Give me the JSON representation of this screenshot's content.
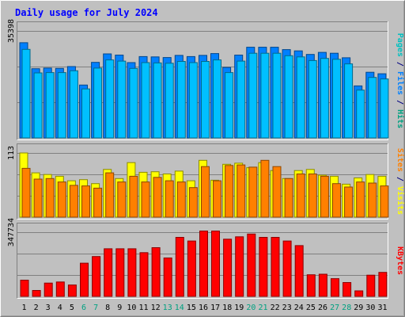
{
  "chart_data": {
    "type": "bar",
    "title": "Daily usage for July 2024",
    "categories": [
      "1",
      "2",
      "3",
      "4",
      "5",
      "6",
      "7",
      "8",
      "9",
      "10",
      "11",
      "12",
      "13",
      "14",
      "15",
      "16",
      "17",
      "18",
      "19",
      "20",
      "21",
      "22",
      "23",
      "24",
      "25",
      "26",
      "27",
      "28",
      "29",
      "30",
      "31"
    ],
    "weekend_days": [
      "6",
      "7",
      "13",
      "14",
      "20",
      "21",
      "27",
      "28"
    ],
    "panels": [
      {
        "id": "hits",
        "max_label": "35398",
        "ylim": [
          0,
          35398
        ],
        "axis_labels": [
          {
            "text": "Pages",
            "color": "#00c0c0"
          },
          {
            "text": " / ",
            "color": "#000080"
          },
          {
            "text": "Files",
            "color": "#0080ff"
          },
          {
            "text": " / ",
            "color": "#000080"
          },
          {
            "text": "Hits",
            "color": "#00a080"
          }
        ],
        "series": [
          {
            "name": "Hits",
            "color": "#0080ff",
            "values": [
              31500,
              22900,
              23100,
              23000,
              23600,
              17500,
              25000,
              27800,
              27400,
              24900,
              26900,
              26800,
              26600,
              27300,
              26900,
              27300,
              27900,
              23300,
              27400,
              30000,
              30000,
              30000,
              29200,
              28800,
              27600,
              28300,
              28000,
              26500,
              17200,
              21700,
              21200
            ]
          },
          {
            "name": "Files",
            "color": "#00c0ff",
            "values": [
              29300,
              21500,
              21600,
              21600,
              22200,
              16200,
              23100,
              25800,
              25400,
              23000,
              24900,
              24800,
              24700,
              25300,
              24900,
              25300,
              25800,
              21600,
              25400,
              28000,
              28000,
              28000,
              27200,
              26800,
              25600,
              26300,
              26000,
              24500,
              15800,
              20000,
              19500
            ]
          }
        ]
      },
      {
        "id": "visits",
        "max_label": "113",
        "ylim": [
          0,
          113
        ],
        "axis_labels": [
          {
            "text": "Sites",
            "color": "#ff8000"
          },
          {
            "text": " / ",
            "color": "#000080"
          },
          {
            "text": "Visits",
            "color": "#ffff00"
          }
        ],
        "series": [
          {
            "name": "Visits",
            "color": "#ffff00",
            "values": [
              113,
              78,
              75,
              72,
              64,
              66,
              59,
              84,
              68,
              96,
              79,
              80,
              76,
              81,
              64,
              100,
              65,
              93,
              95,
              87,
              96,
              82,
              68,
              82,
              84,
              74,
              72,
              58,
              69,
              75,
              72
            ]
          },
          {
            "name": "Sites",
            "color": "#ff8000",
            "values": [
              86,
              67,
              68,
              62,
              56,
              55,
              51,
              78,
              62,
              72,
              62,
              70,
              64,
              62,
              52,
              89,
              64,
              91,
              92,
              88,
              100,
              89,
              68,
              76,
              76,
              72,
              59,
              53,
              62,
              60,
              55
            ]
          }
        ]
      },
      {
        "id": "kbytes",
        "max_label": "347734",
        "ylim": [
          0,
          347734
        ],
        "axis_labels": [
          {
            "text": "KBytes",
            "color": "#ff0000"
          }
        ],
        "series": [
          {
            "name": "KBytes",
            "color": "#ff0000",
            "values": [
              88000,
              32000,
              72000,
              78000,
              62000,
              180000,
              216000,
              258000,
              258000,
              258000,
              237000,
              264000,
              208000,
              320000,
              300000,
              354000,
              354000,
              310000,
              323000,
              338000,
              320000,
              320000,
              300000,
              275000,
              117000,
              120000,
              96000,
              75000,
              30000,
              115000,
              130000
            ]
          }
        ]
      }
    ],
    "colors": {
      "background": "#c0c0c0",
      "title": "#0000ff",
      "weekday_label": "#000000",
      "weekend_label": "#00a080",
      "grid": "#808080"
    }
  }
}
